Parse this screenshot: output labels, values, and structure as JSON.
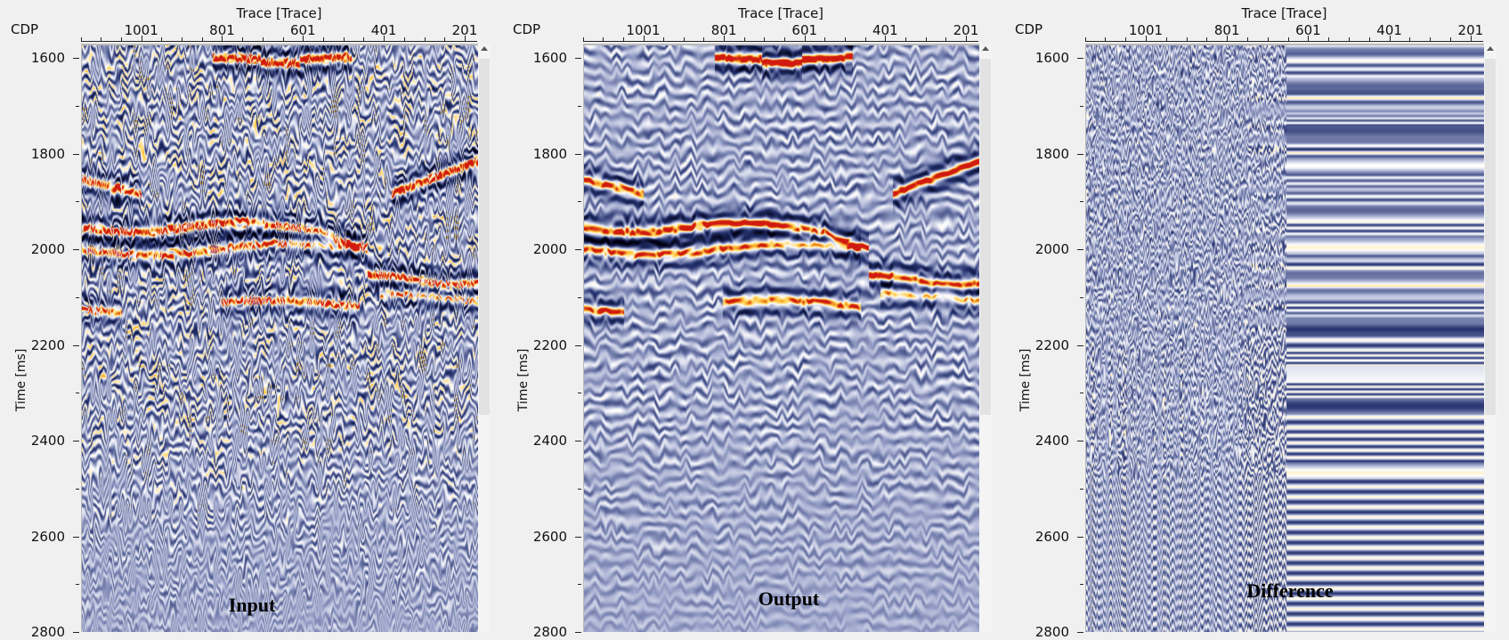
{
  "axis": {
    "x_title": "Trace [Trace]",
    "x_key_label": "CDP",
    "x_ticks": [
      "1001",
      "801",
      "601",
      "401",
      "201"
    ],
    "x_tick_values": [
      1001,
      801,
      601,
      401,
      201
    ],
    "x_range": [
      1150,
      170
    ],
    "y_title": "Time [ms]",
    "y_ticks": [
      "1600",
      "1800",
      "2000",
      "2200",
      "2400",
      "2600",
      "2800"
    ],
    "y_tick_values": [
      1600,
      1800,
      2000,
      2200,
      2400,
      2600,
      2800
    ],
    "y_range": [
      1570,
      2800
    ]
  },
  "panels": [
    {
      "id": "input",
      "caption": "Input"
    },
    {
      "id": "output",
      "caption": "Output"
    },
    {
      "id": "difference",
      "caption": "Difference"
    }
  ],
  "colors": {
    "background": "#f0f0f0",
    "negative_strong": "#000010",
    "negative": "#24316e",
    "zero": "#a3abcf",
    "positive": "#ffffff",
    "positive_strong": "#ffc93a",
    "peak": "#d01a10"
  }
}
